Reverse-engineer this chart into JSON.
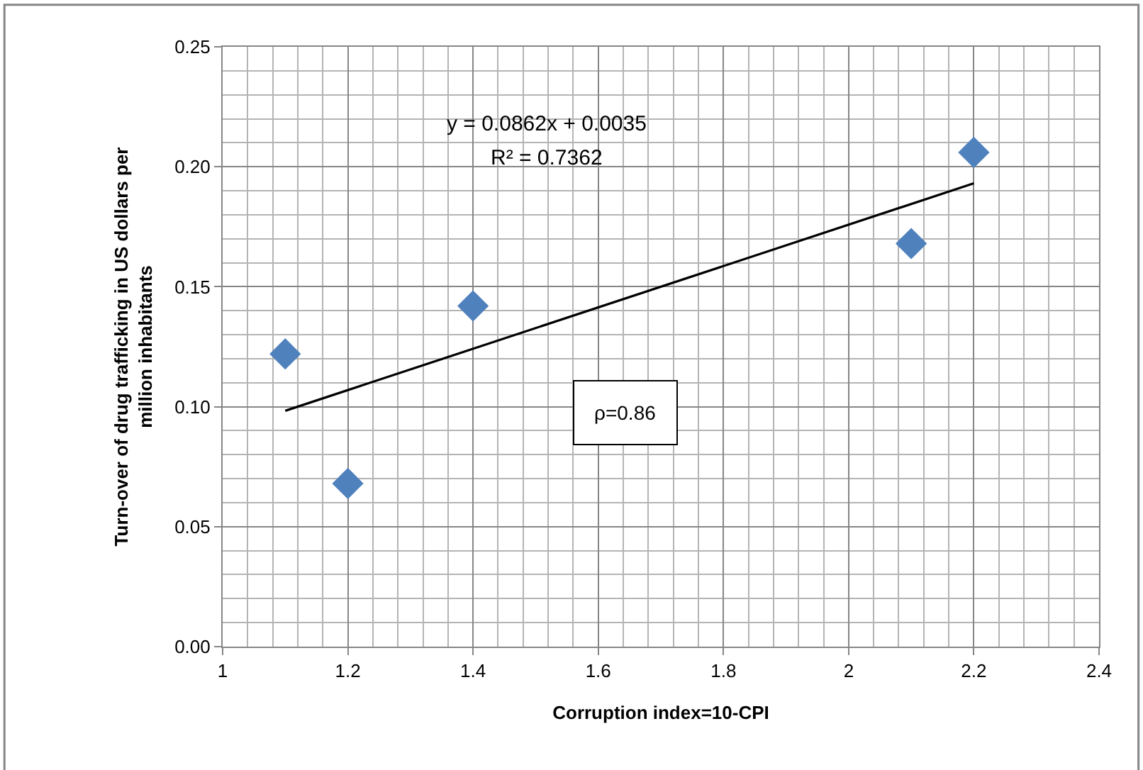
{
  "chart_data": {
    "type": "scatter",
    "xlabel": "Corruption index=10-CPI",
    "ylabel": "Turn-over of drug trafficking in US dollars per million inhabitants",
    "x": [
      1.1,
      1.2,
      1.4,
      2.1,
      2.2
    ],
    "series": [
      {
        "color": "#4f81bd",
        "values": [
          0.122,
          0.068,
          0.142,
          0.168,
          0.206
        ],
        "marker": "diamond"
      },
      {
        "type": "line",
        "color": "#000000",
        "x": [
          1.1,
          2.2
        ],
        "values": [
          0.0983,
          0.1931
        ],
        "marker": "none",
        "line_style": "solid"
      }
    ],
    "annotations": [
      "y = 0.0862x + 0.0035",
      "R² = 0.7362",
      "ρ=0.86"
    ],
    "xlim": [
      1,
      2.4
    ],
    "xticks": [
      {
        "value": 1,
        "label": "1"
      },
      1.2,
      1.4,
      1.6,
      1.8,
      {
        "value": 2,
        "label": "2"
      },
      2.2,
      2.4
    ],
    "ylim": [
      0,
      0.25
    ],
    "yticks": [
      {
        "value": 0,
        "label": "0.00"
      },
      0.05,
      {
        "value": 0.1,
        "label": "0.10"
      },
      0.15,
      {
        "value": 0.2,
        "label": "0.20"
      },
      0.25
    ],
    "grid": true
  }
}
